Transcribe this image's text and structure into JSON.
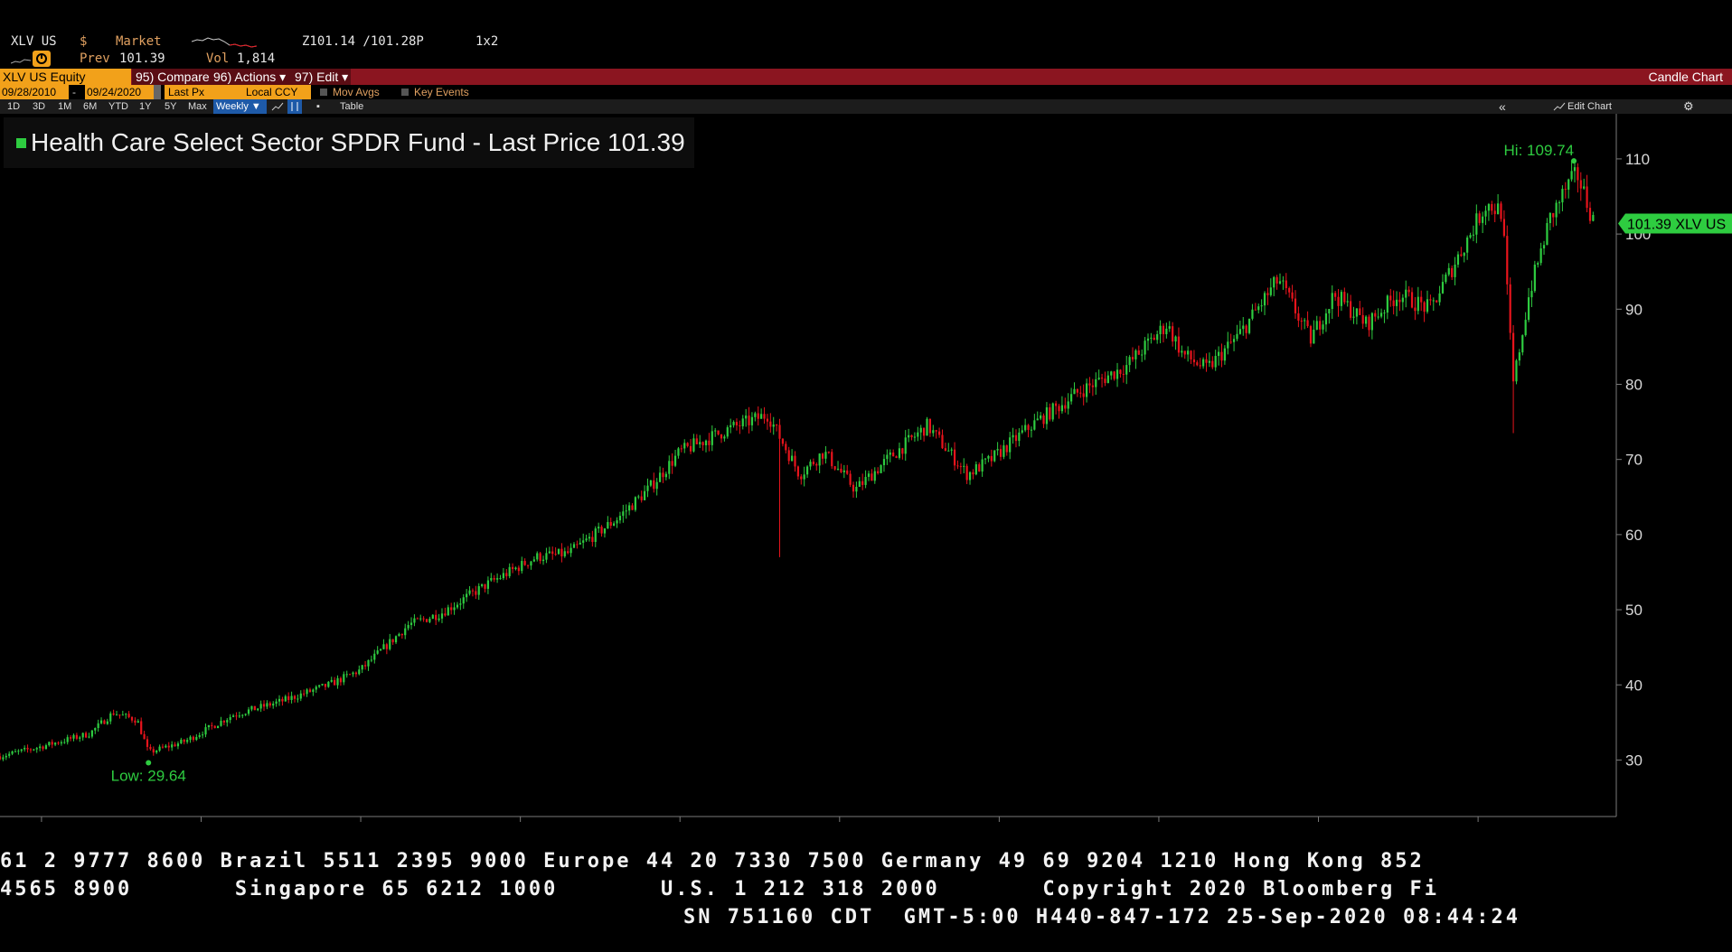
{
  "header": {
    "ticker": "XLV US",
    "currency": "$",
    "market": "Market",
    "prev_label": "Prev",
    "prev_value": "101.39",
    "vol_label": "Vol",
    "vol_value": "1,814",
    "bid_ask": "Z101.14 /101.28P",
    "layout": "1x2"
  },
  "toolbar": {
    "security": "XLV US Equity",
    "compare": "95) Compare",
    "actions": "96) Actions ▾",
    "edit": "97) Edit ▾",
    "chart_type": "Candle Chart"
  },
  "params": {
    "start_date": "09/28/2010",
    "end_date": "09/24/2020",
    "field": "Last Px",
    "currency": "Local CCY",
    "mov_avgs": "Mov Avgs",
    "key_events": "Key Events"
  },
  "periods": {
    "items": [
      "1D",
      "3D",
      "1M",
      "6M",
      "YTD",
      "1Y",
      "5Y",
      "Max"
    ],
    "frequency": "Weekly ▼",
    "table": "Table",
    "edit_chart": "Edit Chart"
  },
  "legend": {
    "title": "Health Care Select Sector SPDR Fund - Last Price",
    "value": "101.39"
  },
  "colors": {
    "up": "#2ecc40",
    "down": "#e8141c",
    "accent": "#f2a11a",
    "toolbar_bg": "#8b1520"
  },
  "chart_data": {
    "type": "candlestick",
    "frequency": "weekly",
    "ylim": [
      22,
      116
    ],
    "yticks": [
      30,
      40,
      50,
      60,
      70,
      80,
      90,
      100,
      110
    ],
    "x_range": [
      2010.74,
      2020.73
    ],
    "xticks": [
      "2011",
      "2012",
      "2013",
      "2014",
      "2015",
      "2016",
      "2017",
      "2018",
      "2019",
      "2020"
    ],
    "high_label": "Hi: 109.74",
    "high": {
      "t": 2020.6,
      "value": 109.74
    },
    "low_label": "Low: 29.64",
    "low": {
      "t": 2011.67,
      "value": 29.64
    },
    "last_label": "101.39 XLV US",
    "last_value": 101.39,
    "trend": [
      [
        2010.74,
        30.5
      ],
      [
        2011.0,
        31.8
      ],
      [
        2011.3,
        33.5
      ],
      [
        2011.45,
        36.3
      ],
      [
        2011.6,
        35.3
      ],
      [
        2011.67,
        31.0
      ],
      [
        2011.9,
        32.5
      ],
      [
        2012.2,
        36.0
      ],
      [
        2012.5,
        37.8
      ],
      [
        2012.8,
        40.0
      ],
      [
        2013.0,
        42.0
      ],
      [
        2013.3,
        48.0
      ],
      [
        2013.5,
        49.5
      ],
      [
        2013.8,
        53.5
      ],
      [
        2014.1,
        57.0
      ],
      [
        2014.3,
        57.5
      ],
      [
        2014.6,
        62.0
      ],
      [
        2014.8,
        66.0
      ],
      [
        2015.0,
        71.0
      ],
      [
        2015.3,
        74.0
      ],
      [
        2015.55,
        76.0
      ],
      [
        2015.65,
        72.0
      ],
      [
        2015.75,
        68.0
      ],
      [
        2015.9,
        71.0
      ],
      [
        2016.1,
        66.0
      ],
      [
        2016.3,
        70.0
      ],
      [
        2016.55,
        74.5
      ],
      [
        2016.8,
        68.0
      ],
      [
        2016.95,
        70.0
      ],
      [
        2017.2,
        74.5
      ],
      [
        2017.5,
        79.0
      ],
      [
        2017.8,
        82.5
      ],
      [
        2018.05,
        88.0
      ],
      [
        2018.15,
        84.0
      ],
      [
        2018.3,
        82.0
      ],
      [
        2018.5,
        86.5
      ],
      [
        2018.75,
        94.0
      ],
      [
        2018.95,
        86.0
      ],
      [
        2019.1,
        92.0
      ],
      [
        2019.3,
        88.0
      ],
      [
        2019.5,
        92.0
      ],
      [
        2019.7,
        90.0
      ],
      [
        2019.9,
        98.0
      ],
      [
        2020.05,
        104.0
      ],
      [
        2020.15,
        103.0
      ],
      [
        2020.22,
        80.0
      ],
      [
        2020.32,
        92.0
      ],
      [
        2020.45,
        102.0
      ],
      [
        2020.55,
        106.0
      ],
      [
        2020.62,
        108.0
      ],
      [
        2020.73,
        101.4
      ]
    ],
    "spikes": [
      {
        "t": 2015.62,
        "low": 57.0
      },
      {
        "t": 2020.22,
        "low": 73.5
      }
    ],
    "ticker_tape": [
      "61 2 9777 8600 Brazil 5511 2395 9000 Europe 44 20 7330 7500 Germany 49 69 9204 1210 Hong Kong 852",
      "4565 8900       Singapore 65 6212 1000       U.S. 1 212 318 2000       Copyright 2020 Bloomberg Fi",
      "SN 751160 CDT  GMT-5:00 H440-847-172 25-Sep-2020 08:44:24"
    ]
  }
}
